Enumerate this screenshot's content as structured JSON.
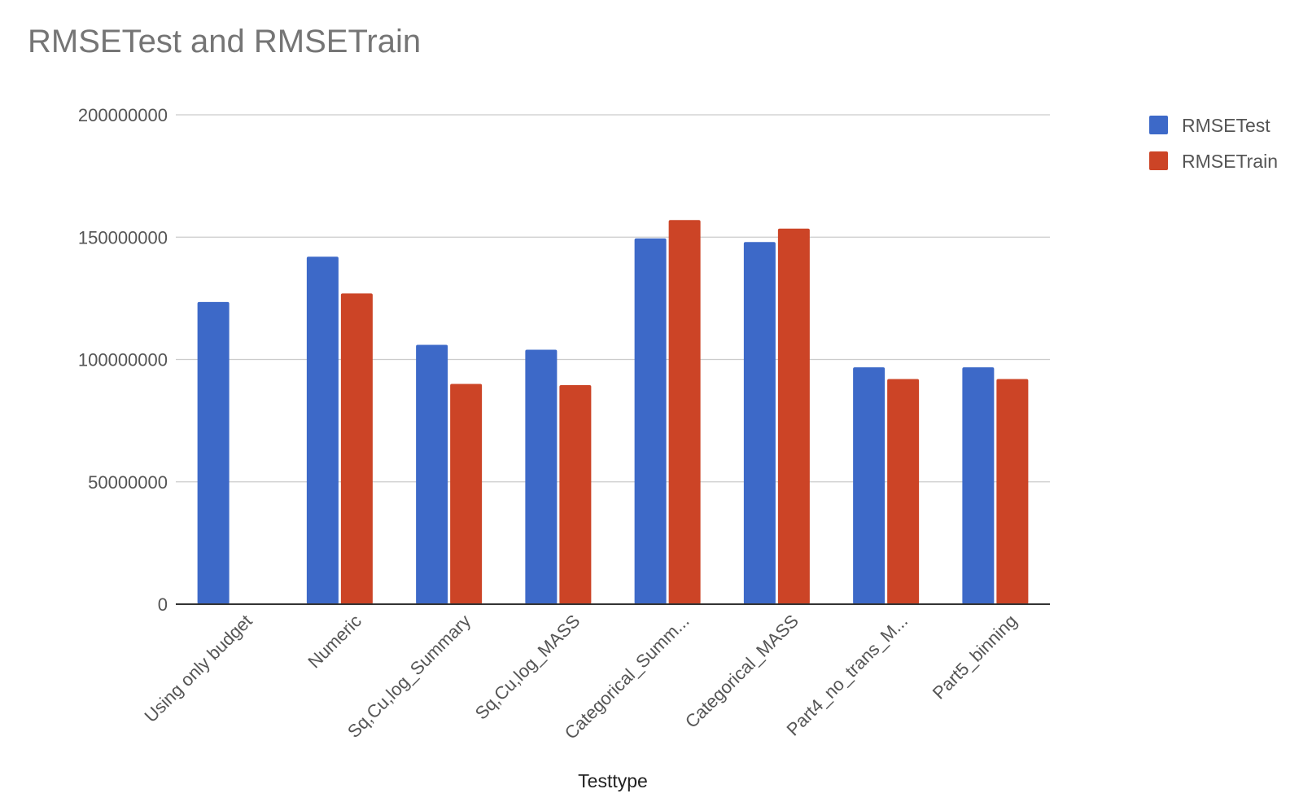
{
  "chart_data": {
    "type": "bar",
    "title": "RMSETest and RMSETrain",
    "xlabel": "Testtype",
    "ylabel": "",
    "ylim": [
      0,
      200000000
    ],
    "yticks": [
      0,
      50000000,
      100000000,
      150000000,
      200000000
    ],
    "ytick_labels": [
      "0",
      "50000000",
      "100000000",
      "150000000",
      "200000000"
    ],
    "categories": [
      "Using only budget",
      "Numeric",
      "Sq,Cu,log_Summary",
      "Sq,Cu,log_MASS",
      "Categorical_Summ...",
      "Categorical_MASS",
      "Part4_no_trans_M...",
      "Part5_binning"
    ],
    "series": [
      {
        "name": "RMSETest",
        "color": "#3d69c8",
        "values": [
          123500000,
          142000000,
          106000000,
          104000000,
          149500000,
          148000000,
          96800000,
          96800000
        ]
      },
      {
        "name": "RMSETrain",
        "color": "#cc4426",
        "values": [
          null,
          127000000,
          90000000,
          89500000,
          157000000,
          153500000,
          92000000,
          92000000
        ]
      }
    ],
    "grid": true,
    "legend_position": "right"
  }
}
